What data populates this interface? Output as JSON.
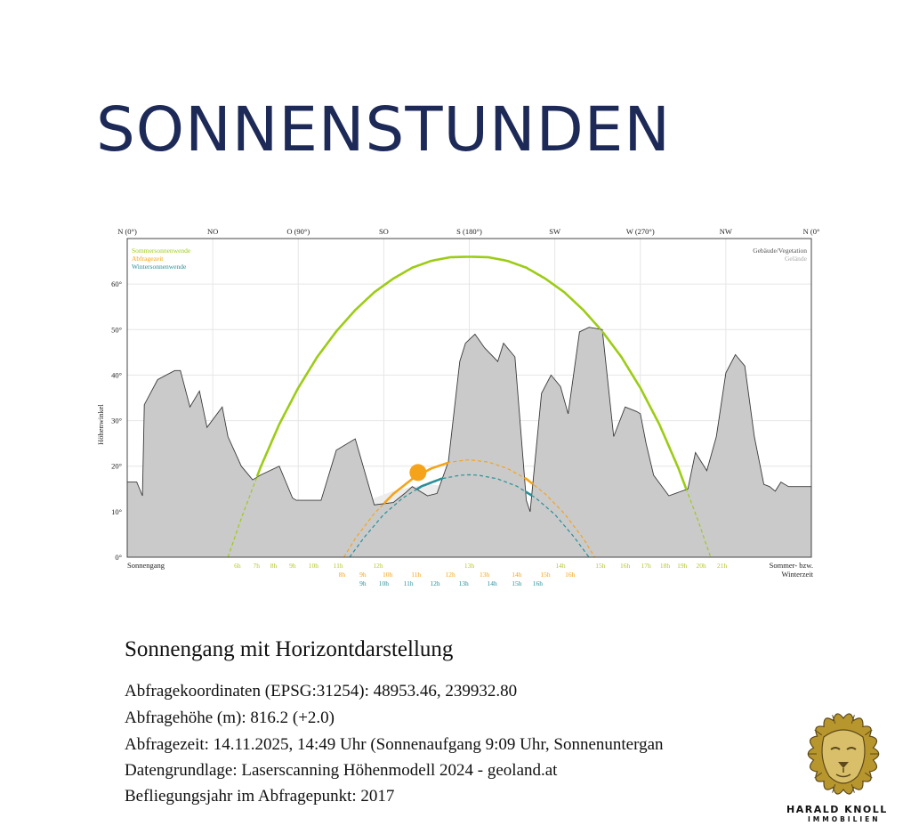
{
  "page": {
    "title": "SONNENSTUNDEN"
  },
  "chart_data": {
    "type": "line",
    "title": "",
    "xlabel": "",
    "ylabel": "Höhenwinkel",
    "ylim": [
      0,
      70
    ],
    "xlim": [
      0,
      360
    ],
    "grid": true,
    "x_unit": "azimuth_deg",
    "top_ticks": [
      {
        "x": 0,
        "label": "N (0°)"
      },
      {
        "x": 45,
        "label": "NO"
      },
      {
        "x": 90,
        "label": "O (90°)"
      },
      {
        "x": 135,
        "label": "SO"
      },
      {
        "x": 180,
        "label": "S (180°)"
      },
      {
        "x": 225,
        "label": "SW"
      },
      {
        "x": 270,
        "label": "W (270°)"
      },
      {
        "x": 315,
        "label": "NW"
      },
      {
        "x": 360,
        "label": "N (0°"
      }
    ],
    "y_ticks": [
      {
        "y": 0,
        "label": "0°"
      },
      {
        "y": 10,
        "label": "10°"
      },
      {
        "y": 20,
        "label": "20°"
      },
      {
        "y": 30,
        "label": "30°"
      },
      {
        "y": 40,
        "label": "40°"
      },
      {
        "y": 50,
        "label": "50°"
      },
      {
        "y": 60,
        "label": "60°"
      }
    ],
    "legend_left": [
      {
        "label": "Sommersonnenwende",
        "color": "#9ccc14"
      },
      {
        "label": "Abfragezeit",
        "color": "#f5a31a"
      },
      {
        "label": "Wintersonnenwende",
        "color": "#2a8f98"
      }
    ],
    "legend_right": [
      {
        "label": "Gebäude/Vegetation",
        "color": "#555555"
      },
      {
        "label": "Gelände",
        "color": "#aaaaaa"
      }
    ],
    "bottom_left_label": "Sonnengang",
    "bottom_right_label": [
      "Sommer- bzw.",
      "Winterzeit"
    ],
    "series": [
      {
        "name": "Sommersonnenwende",
        "color": "#9ccc14",
        "x": [
          53,
          60,
          70,
          80,
          90,
          100,
          110,
          120,
          130,
          140,
          150,
          160,
          170,
          180,
          190,
          200,
          210,
          220,
          230,
          240,
          250,
          260,
          270,
          280,
          290,
          300,
          307
        ],
        "y": [
          0,
          8.5,
          19.6,
          29.2,
          37.2,
          44,
          49.6,
          54.3,
          58.2,
          61.2,
          63.6,
          65.1,
          65.9,
          66,
          65.9,
          65.1,
          63.6,
          61.2,
          58.2,
          54.3,
          49.6,
          44,
          37.2,
          29.2,
          19.6,
          8.5,
          0
        ]
      },
      {
        "name": "Abfragezeit",
        "color": "#f5a31a",
        "x": [
          114,
          120,
          130,
          140,
          150,
          160,
          170,
          180,
          190,
          200,
          210,
          220,
          230,
          240,
          246
        ],
        "y": [
          0,
          4.1,
          9.6,
          13.9,
          17.2,
          19.5,
          20.9,
          21.4,
          20.9,
          19.5,
          17.2,
          13.9,
          9.6,
          4.1,
          0
        ]
      },
      {
        "name": "Wintersonnenwende",
        "color": "#2a8f98",
        "x": [
          117,
          125,
          135,
          145,
          155,
          165,
          175,
          180,
          185,
          195,
          205,
          215,
          225,
          235,
          243
        ],
        "y": [
          0,
          4.5,
          9.4,
          13,
          15.6,
          17.2,
          18,
          18.1,
          18,
          17.2,
          15.6,
          13,
          9.4,
          4.5,
          0
        ]
      }
    ],
    "sun_position": {
      "x": 153,
      "y": 18.6,
      "color": "#f5a31a"
    },
    "horizon_buildings": {
      "x": [
        0,
        5,
        8,
        9,
        16,
        25,
        28,
        33,
        38,
        42,
        50,
        53,
        60,
        66,
        70,
        80,
        87,
        89,
        95,
        101,
        102,
        110,
        120,
        130,
        140,
        146,
        150,
        158,
        163,
        169,
        175,
        178,
        183,
        188,
        195,
        198,
        204,
        210,
        212,
        218,
        223,
        228,
        232,
        238,
        243,
        250,
        256,
        262,
        268,
        270,
        273,
        277,
        285,
        295,
        299,
        302,
        305,
        310,
        315,
        320,
        325,
        330,
        335,
        338,
        341,
        344,
        348,
        352,
        360
      ],
      "y": [
        16.5,
        16.5,
        13.5,
        33.5,
        39,
        41,
        41,
        33,
        36.5,
        28.5,
        33,
        26.5,
        20,
        17,
        18,
        20,
        13,
        12.5,
        12.5,
        12.5,
        12.5,
        23.5,
        26,
        11.5,
        12,
        14,
        15.5,
        13.5,
        14,
        21,
        43,
        47,
        49,
        46,
        43,
        47,
        44,
        12.5,
        10,
        36,
        40,
        37.5,
        31.5,
        49.5,
        50.5,
        50,
        26.5,
        33,
        32,
        31.5,
        25,
        18,
        13.5,
        15,
        23,
        21,
        19,
        26.5,
        40.5,
        44.5,
        42,
        26.5,
        16,
        15.5,
        14.5,
        16.5,
        15.5,
        15.5,
        15.5
      ]
    },
    "horizon_terrain": {
      "x": [
        0,
        10,
        20,
        30,
        40,
        50,
        60,
        70,
        80,
        90,
        100,
        110,
        120,
        130,
        140,
        150,
        160,
        170,
        180,
        190,
        200,
        210,
        220,
        230,
        240,
        250,
        260,
        270,
        280,
        290,
        300,
        310,
        320,
        330,
        340,
        350,
        360
      ],
      "y": [
        16,
        12,
        10.5,
        9.5,
        8,
        6.5,
        4.5,
        3.8,
        4.2,
        5,
        6,
        8,
        11,
        13,
        14.5,
        15.5,
        16,
        15.5,
        14.5,
        13.5,
        12,
        10,
        8,
        6,
        4.5,
        3.5,
        3.6,
        4.5,
        5.5,
        6,
        5,
        4,
        4.5,
        6,
        8,
        10.5,
        12.5
      ]
    },
    "time_rows": [
      {
        "color": "#b6c72a",
        "points": [
          {
            "x": 58,
            "label": "6h"
          },
          {
            "x": 68,
            "label": "7h"
          },
          {
            "x": 77,
            "label": "8h"
          },
          {
            "x": 87,
            "label": "9h"
          },
          {
            "x": 98,
            "label": "10h"
          },
          {
            "x": 111,
            "label": "11h"
          },
          {
            "x": 132,
            "label": "12h"
          },
          {
            "x": 180,
            "label": "13h"
          },
          {
            "x": 228,
            "label": "14h"
          },
          {
            "x": 249,
            "label": "15h"
          },
          {
            "x": 262,
            "label": "16h"
          },
          {
            "x": 273,
            "label": "17h"
          },
          {
            "x": 283,
            "label": "18h"
          },
          {
            "x": 292,
            "label": "19h"
          },
          {
            "x": 302,
            "label": "20h"
          },
          {
            "x": 313,
            "label": "21h"
          }
        ]
      },
      {
        "color": "#f5a31a",
        "points": [
          {
            "x": 113,
            "label": "8h"
          },
          {
            "x": 124,
            "label": "9h"
          },
          {
            "x": 137,
            "label": "10h"
          },
          {
            "x": 152,
            "label": "11h"
          },
          {
            "x": 170,
            "label": "12h"
          },
          {
            "x": 188,
            "label": "13h"
          },
          {
            "x": 205,
            "label": "14h"
          },
          {
            "x": 220,
            "label": "15h"
          },
          {
            "x": 233,
            "label": "16h"
          }
        ]
      },
      {
        "color": "#2a8f98",
        "points": [
          {
            "x": 124,
            "label": "9h"
          },
          {
            "x": 135,
            "label": "10h"
          },
          {
            "x": 148,
            "label": "11h"
          },
          {
            "x": 162,
            "label": "12h"
          },
          {
            "x": 177,
            "label": "13h"
          },
          {
            "x": 192,
            "label": "14h"
          },
          {
            "x": 205,
            "label": "15h"
          },
          {
            "x": 216,
            "label": "16h"
          }
        ]
      }
    ]
  },
  "info": {
    "heading": "Sonnengang mit Horizontdarstellung",
    "lines": [
      "Abfragekoordinaten (EPSG:31254): 48953.46, 239932.80",
      "Abfragehöhe (m): 816.2 (+2.0)",
      "Abfragezeit: 14.11.2025, 14:49 Uhr (Sonnenaufgang 9:09 Uhr,  Sonnenuntergan",
      "Datengrundlage: Laserscanning Höhenmodell 2024 - geoland.at",
      "Befliegungsjahr im Abfragepunkt: 2017"
    ]
  },
  "logo": {
    "name": "HARALD KNOLL",
    "sub": "IMMOBILIEN",
    "colors": {
      "gold": "#b8962e",
      "dark": "#5c4a1a"
    }
  }
}
